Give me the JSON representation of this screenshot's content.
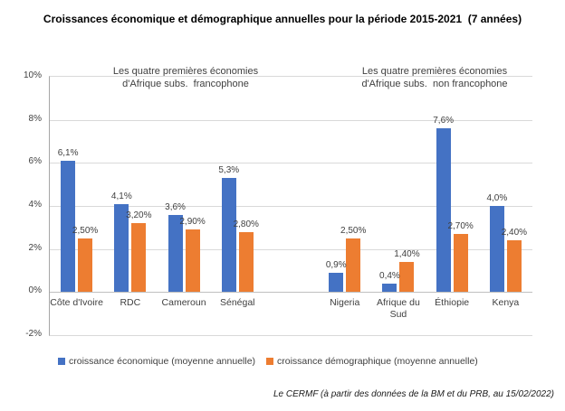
{
  "title": "Croissances économique et démographique annuelles pour la période 2015-2021  (7 années)",
  "annotations": {
    "left": {
      "line1": "Les quatre premières économies",
      "line2": "d'Afrique subs.  francophone"
    },
    "right": {
      "line1": "Les quatre premières économies",
      "line2": "d'Afrique subs.  non francophone"
    }
  },
  "chart_data": {
    "type": "bar",
    "categories": [
      "Côte d'Ivoire",
      "RDC",
      "Cameroun",
      "Sénégal",
      "",
      "Nigeria",
      "Afrique du Sud",
      "Éthiopie",
      "Kenya"
    ],
    "series": [
      {
        "name": "croissance économique (moyenne annuelle)",
        "color": "#4472C4",
        "values": [
          6.1,
          4.1,
          3.6,
          5.3,
          null,
          0.9,
          0.4,
          7.6,
          4.0
        ],
        "labels": [
          "6,1%",
          "4,1%",
          "3,6%",
          "5,3%",
          "",
          "0,9%",
          "0,4%",
          "7,6%",
          "4,0%"
        ]
      },
      {
        "name": "croissance démographique (moyenne annuelle)",
        "color": "#ED7D31",
        "values": [
          2.5,
          3.2,
          2.9,
          2.8,
          null,
          2.5,
          1.4,
          2.7,
          2.4
        ],
        "labels": [
          "2,50%",
          "3,20%",
          "2,90%",
          "2,80%",
          "",
          "2,50%",
          "1,40%",
          "2,70%",
          "2,40%"
        ]
      }
    ],
    "ylim": [
      -2,
      10
    ],
    "ytick_step": 2,
    "yticks": [
      {
        "label": "10%",
        "value": 10
      },
      {
        "label": "8%",
        "value": 8
      },
      {
        "label": "6%",
        "value": 6
      },
      {
        "label": "4%",
        "value": 4
      },
      {
        "label": "2%",
        "value": 2
      },
      {
        "label": "0%",
        "value": 0
      },
      {
        "label": "-2%",
        "value": -2
      }
    ],
    "grid": true,
    "legend_position": "bottom"
  },
  "footer": "Le CERMF (à partir des données de la BM et du PRB, au 15/02/2022)",
  "colors": {
    "economic": "#4472C4",
    "demographic": "#ED7D31",
    "gridline": "#D9D9D9",
    "axis_line": "#A6A6A6",
    "text": "#404040"
  }
}
